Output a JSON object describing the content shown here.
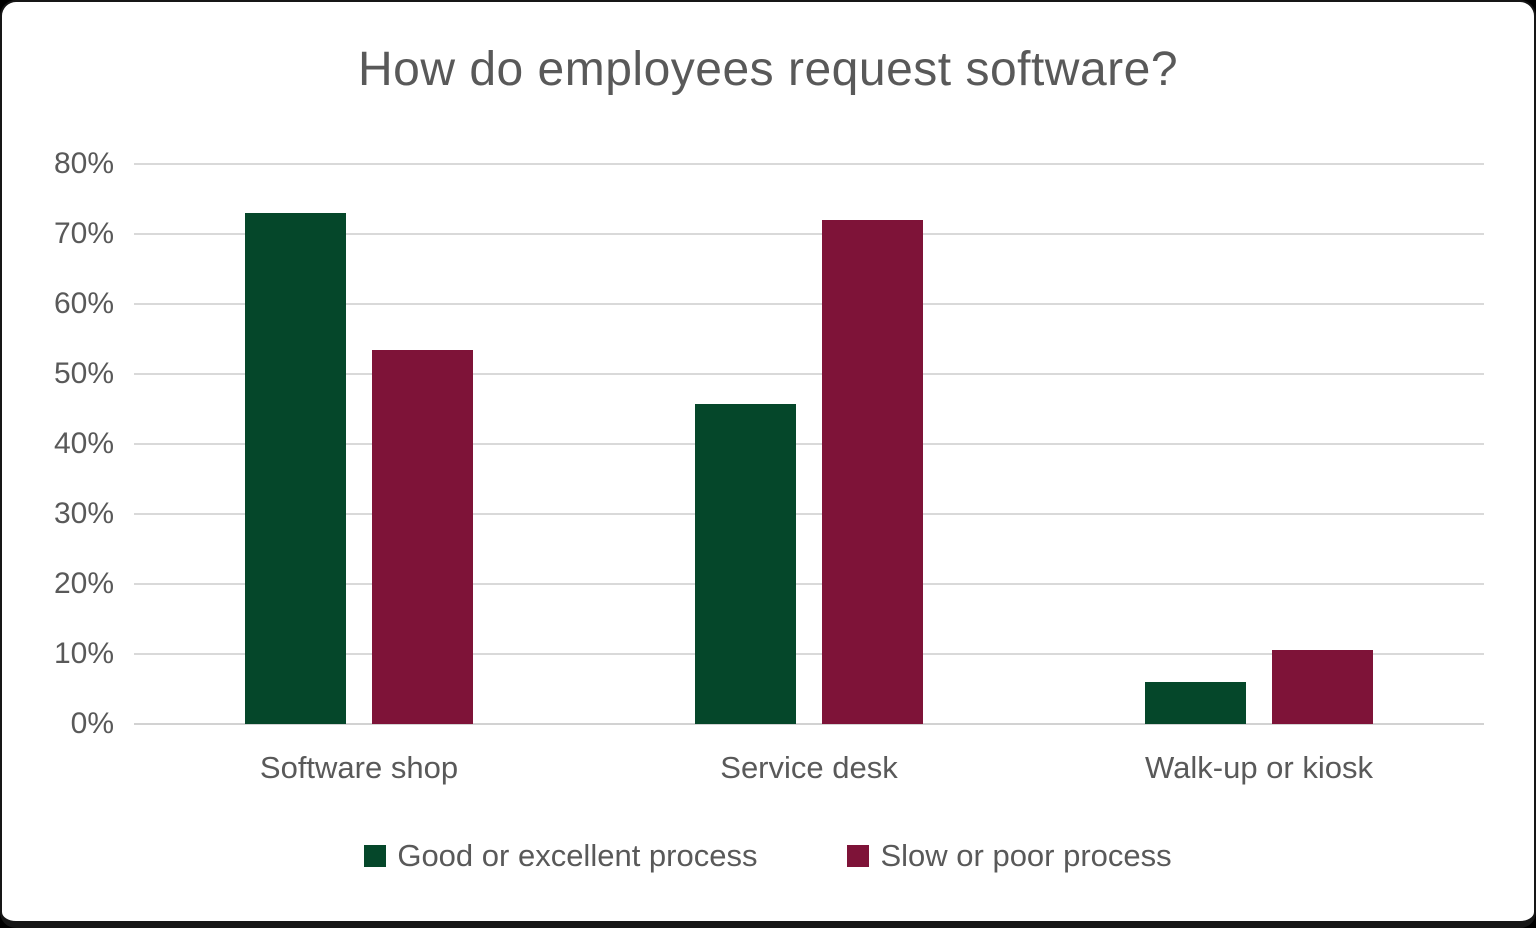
{
  "title": "How do employees request software?",
  "chart_data": {
    "type": "bar",
    "title": "How do employees request software?",
    "categories": [
      "Software shop",
      "Service desk",
      "Walk-up or kiosk"
    ],
    "series": [
      {
        "name": "Good or excellent process",
        "color": "#05472A",
        "values": [
          73,
          45.7,
          6
        ]
      },
      {
        "name": "Slow or poor process",
        "color": "#7E1338",
        "values": [
          53.4,
          72,
          10.6
        ]
      }
    ],
    "xlabel": "",
    "ylabel": "",
    "ylim": [
      0,
      80
    ],
    "ytick_step": 10,
    "ytick_suffix": "%",
    "grid": true,
    "gridline_color": "#d9d9d9",
    "text_color": "#595959",
    "legend_position": "bottom"
  }
}
